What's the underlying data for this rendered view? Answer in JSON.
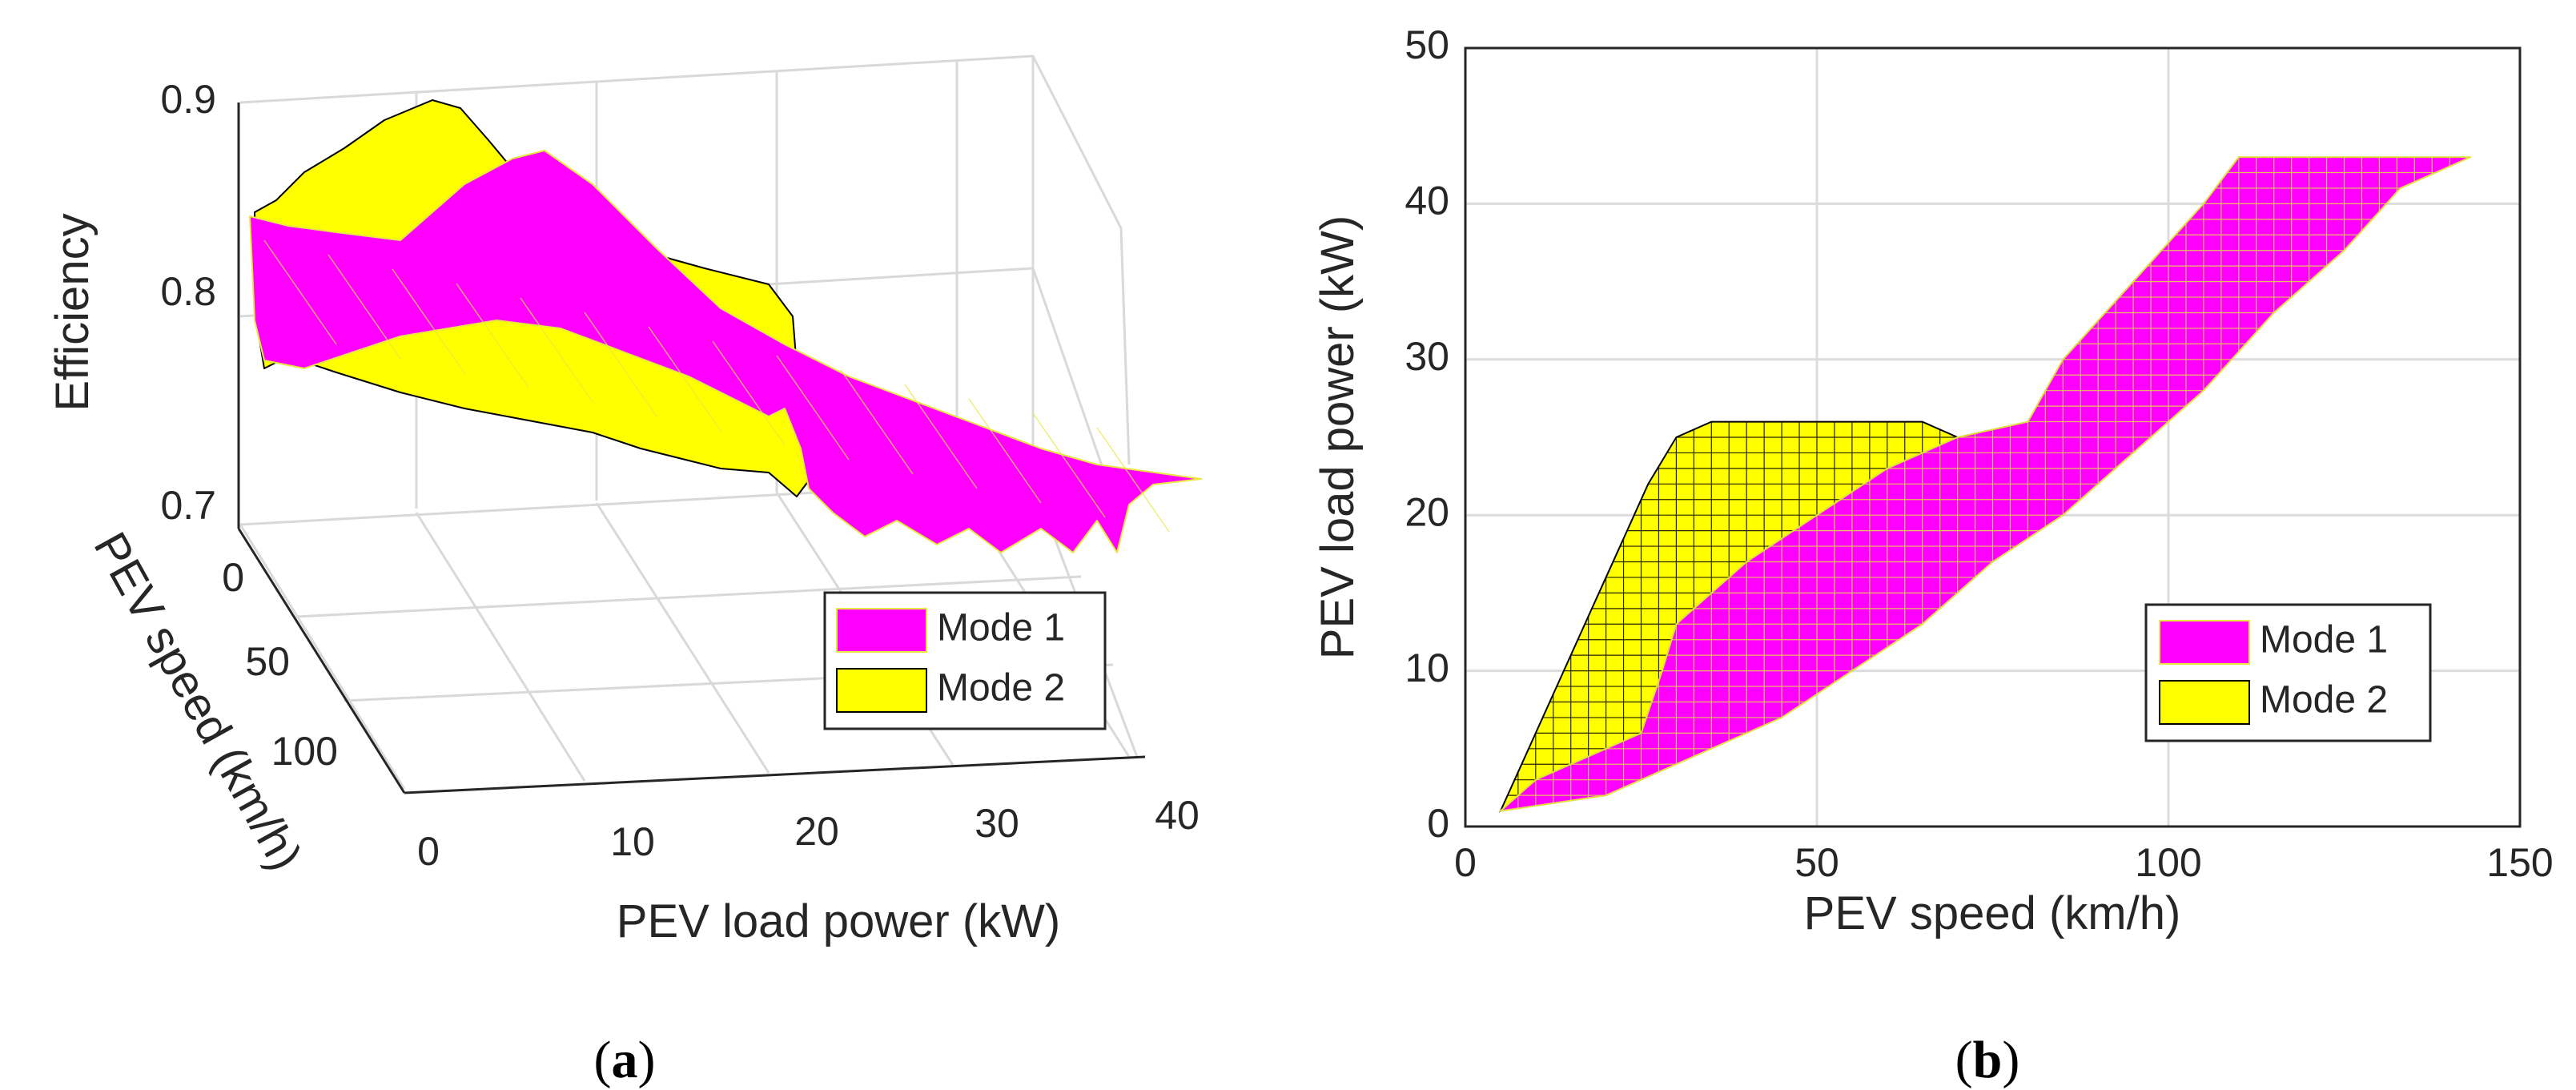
{
  "chart_data": [
    {
      "type": "surface3d",
      "panel_label": {
        "open": "(",
        "letter": "a",
        "close": ")"
      },
      "zlabel": "Efficiency",
      "xlabel": "PEV load power (kW)",
      "ylabel": "PEV speed (km/h)",
      "zlim": [
        0.7,
        0.9
      ],
      "z_ticks": [
        "0.7",
        "0.8",
        "0.9"
      ],
      "x_ticks": [
        "0",
        "10",
        "20",
        "30",
        "40"
      ],
      "y_ticks": [
        "0",
        "50",
        "100"
      ],
      "grid": true,
      "legend": {
        "placement": "bottom-right",
        "entries": [
          "Mode 1",
          "Mode 2"
        ]
      },
      "series": [
        {
          "name": "Mode 1",
          "color": "#ff00ff",
          "edge_color": "#e0e040",
          "efficiency_profile": {
            "load_kw": [
              0,
              5,
              10,
              15,
              20,
              25,
              30,
              35,
              40,
              43
            ],
            "peak_efficiency": [
              0.83,
              0.85,
              0.87,
              0.855,
              0.83,
              0.8,
              0.775,
              0.755,
              0.74,
              0.735
            ]
          }
        },
        {
          "name": "Mode 2",
          "color": "#ffff00",
          "edge_color": "#000000",
          "efficiency_profile": {
            "load_kw": [
              0,
              5,
              10,
              15,
              20,
              26
            ],
            "peak_efficiency": [
              0.82,
              0.86,
              0.89,
              0.86,
              0.83,
              0.8
            ]
          }
        }
      ]
    },
    {
      "type": "region",
      "panel_label": {
        "open": "(",
        "letter": "b",
        "close": ")"
      },
      "xlabel": "PEV speed (km/h)",
      "ylabel": "PEV load power (kW)",
      "xlim": [
        0,
        150
      ],
      "ylim": [
        0,
        50
      ],
      "x_ticks": [
        "0",
        "50",
        "100",
        "150"
      ],
      "y_ticks": [
        "0",
        "10",
        "20",
        "30",
        "40",
        "50"
      ],
      "grid": true,
      "legend": {
        "placement": "bottom-right",
        "entries": [
          "Mode 1",
          "Mode 2"
        ]
      },
      "series": [
        {
          "name": "Mode 1",
          "color": "#ff00ff",
          "edge_color": "#e0e040",
          "region": {
            "upper": [
              [
                5,
                1
              ],
              [
                10,
                3
              ],
              [
                15,
                4
              ],
              [
                20,
                5
              ],
              [
                25,
                6
              ],
              [
                28,
                10
              ],
              [
                30,
                13
              ],
              [
                35,
                15
              ],
              [
                40,
                17
              ],
              [
                50,
                20
              ],
              [
                60,
                23
              ],
              [
                70,
                25
              ],
              [
                80,
                26
              ],
              [
                85,
                30
              ],
              [
                95,
                35
              ],
              [
                105,
                40
              ],
              [
                110,
                43
              ],
              [
                143,
                43
              ]
            ],
            "lower": [
              [
                5,
                1
              ],
              [
                20,
                2
              ],
              [
                30,
                4
              ],
              [
                45,
                7
              ],
              [
                55,
                10
              ],
              [
                65,
                13
              ],
              [
                75,
                17
              ],
              [
                85,
                20
              ],
              [
                95,
                24
              ],
              [
                105,
                28
              ],
              [
                115,
                33
              ],
              [
                125,
                37
              ],
              [
                133,
                41
              ],
              [
                143,
                43
              ]
            ]
          }
        },
        {
          "name": "Mode 2",
          "color": "#ffff00",
          "edge_color": "#000000",
          "region": {
            "upper": [
              [
                5,
                1
              ],
              [
                7,
                3
              ],
              [
                10,
                6
              ],
              [
                14,
                10
              ],
              [
                18,
                14
              ],
              [
                22,
                18
              ],
              [
                26,
                22
              ],
              [
                30,
                25
              ],
              [
                35,
                26
              ],
              [
                45,
                26
              ],
              [
                55,
                26
              ],
              [
                65,
                26
              ],
              [
                70,
                25
              ]
            ],
            "lower": [
              [
                5,
                1
              ],
              [
                10,
                2
              ],
              [
                20,
                3
              ],
              [
                30,
                5
              ],
              [
                40,
                8
              ],
              [
                50,
                12
              ],
              [
                55,
                14
              ],
              [
                60,
                17
              ],
              [
                65,
                21
              ],
              [
                70,
                25
              ]
            ]
          }
        }
      ]
    }
  ]
}
